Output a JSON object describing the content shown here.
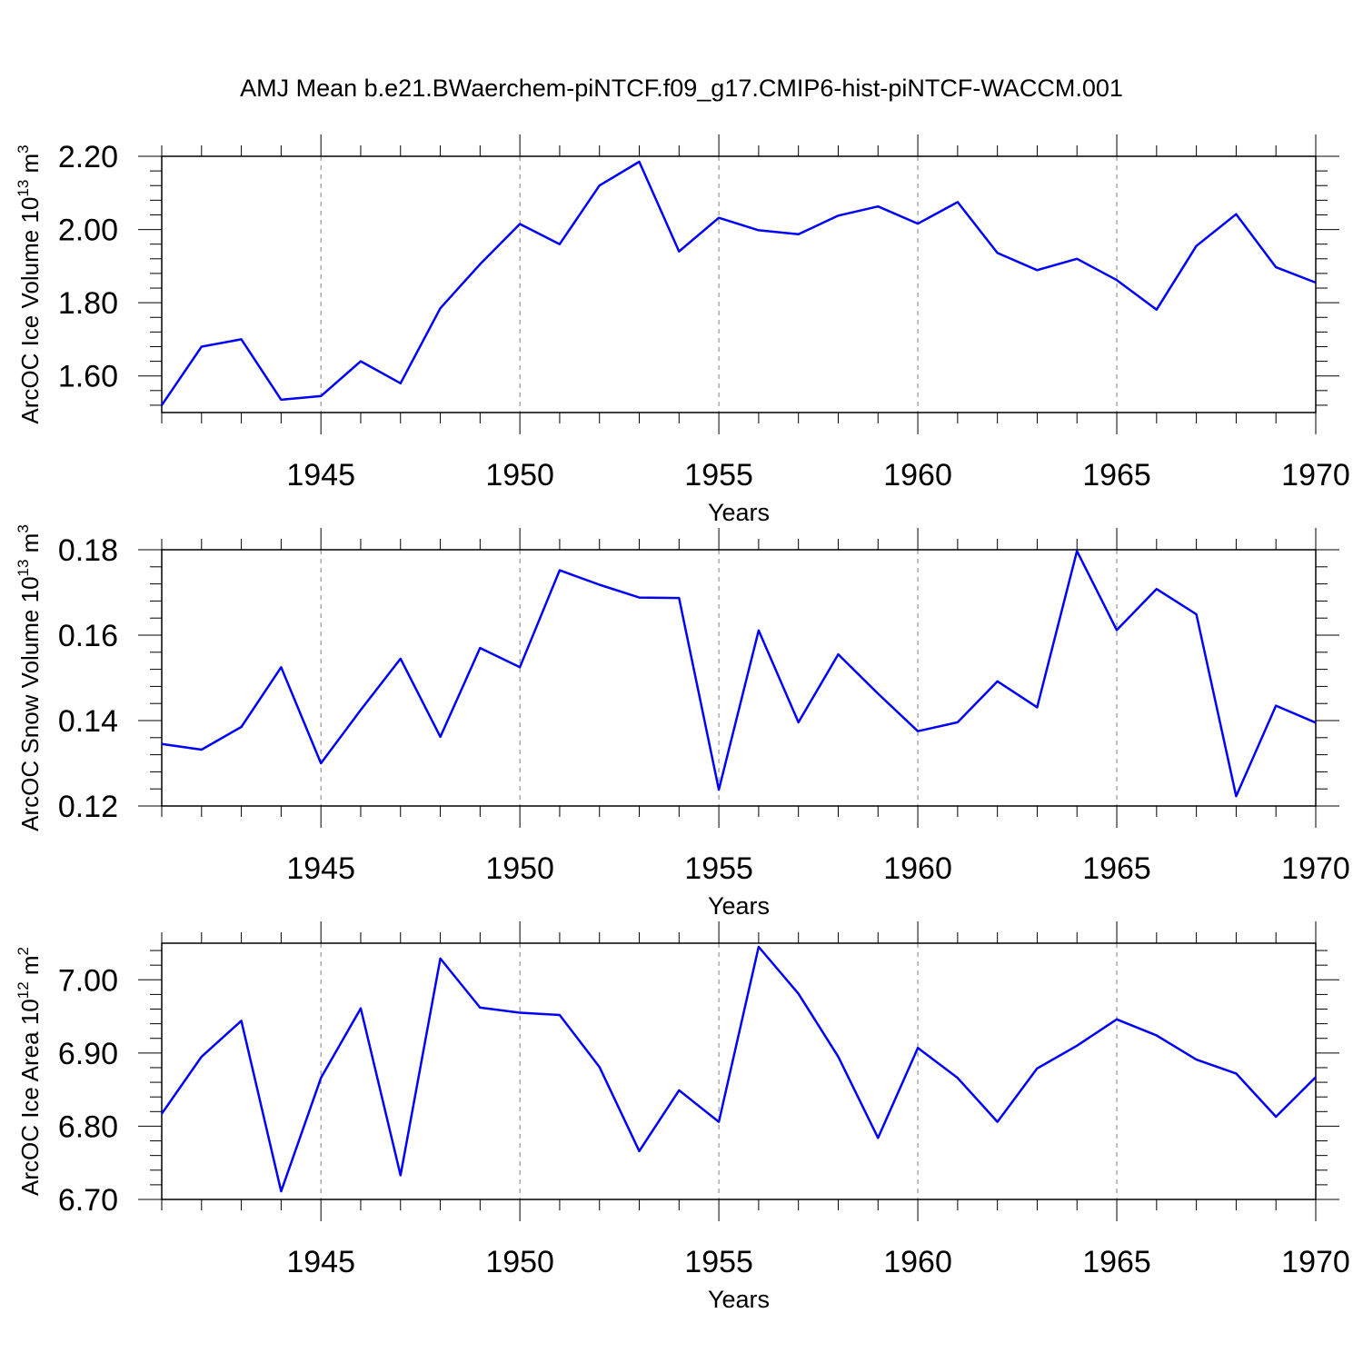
{
  "title": "AMJ Mean b.e21.BWaerchem-piNTCF.f09_g17.CMIP6-hist-piNTCF-WACCM.001",
  "colors": {
    "line": "#0000ff",
    "axis": "#000000",
    "grid": "#808080"
  },
  "chart_data": [
    {
      "type": "line",
      "xlabel": "Years",
      "ylabel": {
        "text": "ArcOC Ice Volume 10",
        "sup": "13",
        "unit": " m",
        "unit_sup": "3"
      },
      "xlim": [
        1941,
        1970
      ],
      "ylim": [
        1.5,
        2.2
      ],
      "yticks": [
        1.6,
        1.8,
        2.0,
        2.2
      ],
      "ytick_labels": [
        "1.60",
        "1.80",
        "2.00",
        "2.20"
      ],
      "xticks": [
        1945,
        1950,
        1955,
        1960,
        1965,
        1970
      ],
      "xtick_labels": [
        "1945",
        "1950",
        "1955",
        "1960",
        "1965",
        "1970"
      ],
      "x": [
        1941,
        1942,
        1943,
        1944,
        1945,
        1946,
        1947,
        1948,
        1949,
        1950,
        1951,
        1952,
        1953,
        1954,
        1955,
        1956,
        1957,
        1958,
        1959,
        1960,
        1961,
        1962,
        1963,
        1964,
        1965,
        1966,
        1967,
        1968,
        1969,
        1970
      ],
      "values": [
        1.52,
        1.68,
        1.7,
        1.535,
        1.545,
        1.64,
        1.58,
        1.785,
        1.905,
        2.015,
        1.96,
        2.12,
        2.185,
        1.94,
        2.032,
        1.998,
        1.987,
        2.038,
        2.063,
        2.016,
        2.075,
        1.936,
        1.889,
        1.92,
        1.862,
        1.781,
        1.955,
        2.042,
        1.897,
        1.855
      ]
    },
    {
      "type": "line",
      "xlabel": "Years",
      "ylabel": {
        "text": "ArcOC Snow Volume 10",
        "sup": "13",
        "unit": " m",
        "unit_sup": "3"
      },
      "xlim": [
        1941,
        1970
      ],
      "ylim": [
        0.12,
        0.18
      ],
      "yticks": [
        0.12,
        0.14,
        0.16,
        0.18
      ],
      "ytick_labels": [
        "0.12",
        "0.14",
        "0.16",
        "0.18"
      ],
      "xticks": [
        1945,
        1950,
        1955,
        1960,
        1965,
        1970
      ],
      "xtick_labels": [
        "1945",
        "1950",
        "1955",
        "1960",
        "1965",
        "1970"
      ],
      "x": [
        1941,
        1942,
        1943,
        1944,
        1945,
        1946,
        1947,
        1948,
        1949,
        1950,
        1951,
        1952,
        1953,
        1954,
        1955,
        1956,
        1957,
        1958,
        1959,
        1960,
        1961,
        1962,
        1963,
        1964,
        1965,
        1966,
        1967,
        1968,
        1969,
        1970
      ],
      "values": [
        0.1345,
        0.1332,
        0.1385,
        0.1525,
        0.13,
        0.1425,
        0.1545,
        0.1362,
        0.157,
        0.1525,
        0.1752,
        0.1718,
        0.1688,
        0.1687,
        0.1238,
        0.1611,
        0.1396,
        0.1555,
        0.1463,
        0.1375,
        0.1396,
        0.1492,
        0.1431,
        0.1797,
        0.1612,
        0.1708,
        0.1649,
        0.1223,
        0.1435,
        0.1395
      ]
    },
    {
      "type": "line",
      "xlabel": "Years",
      "ylabel": {
        "text": "ArcOC Ice Area 10",
        "sup": "12",
        "unit": " m",
        "unit_sup": "2"
      },
      "xlim": [
        1941,
        1970
      ],
      "ylim": [
        6.7,
        7.05
      ],
      "yticks": [
        6.7,
        6.8,
        6.9,
        7.0
      ],
      "ytick_labels": [
        "6.70",
        "6.80",
        "6.90",
        "7.00"
      ],
      "xticks": [
        1945,
        1950,
        1955,
        1960,
        1965,
        1970
      ],
      "xtick_labels": [
        "1945",
        "1950",
        "1955",
        "1960",
        "1965",
        "1970"
      ],
      "x": [
        1941,
        1942,
        1943,
        1944,
        1945,
        1946,
        1947,
        1948,
        1949,
        1950,
        1951,
        1952,
        1953,
        1954,
        1955,
        1956,
        1957,
        1958,
        1959,
        1960,
        1961,
        1962,
        1963,
        1964,
        1965,
        1966,
        1967,
        1968,
        1969,
        1970
      ],
      "values": [
        6.817,
        6.895,
        6.944,
        6.711,
        6.866,
        6.961,
        6.733,
        7.029,
        6.962,
        6.955,
        6.952,
        6.881,
        6.766,
        6.849,
        6.806,
        7.045,
        6.981,
        6.895,
        6.784,
        6.907,
        6.866,
        6.806,
        6.879,
        6.91,
        6.946,
        6.924,
        6.891,
        6.872,
        6.813,
        6.867
      ]
    }
  ]
}
